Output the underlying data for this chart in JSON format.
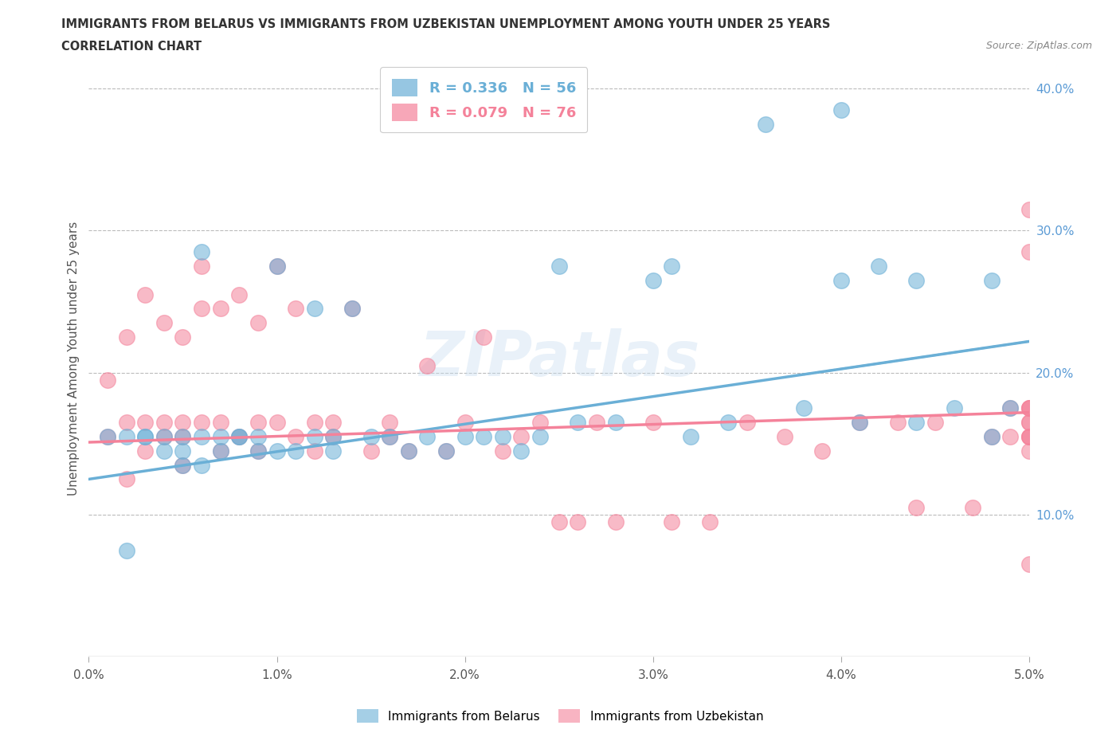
{
  "title_line1": "IMMIGRANTS FROM BELARUS VS IMMIGRANTS FROM UZBEKISTAN UNEMPLOYMENT AMONG YOUTH UNDER 25 YEARS",
  "title_line2": "CORRELATION CHART",
  "source_text": "Source: ZipAtlas.com",
  "ylabel": "Unemployment Among Youth under 25 years",
  "xlim": [
    0.0,
    0.05
  ],
  "ylim": [
    0.0,
    0.42
  ],
  "xticks": [
    0.0,
    0.01,
    0.02,
    0.03,
    0.04,
    0.05
  ],
  "xticklabels": [
    "0.0%",
    "1.0%",
    "2.0%",
    "3.0%",
    "4.0%",
    "5.0%"
  ],
  "yticks_right": [
    0.1,
    0.2,
    0.3,
    0.4
  ],
  "yticklabels_right": [
    "10.0%",
    "20.0%",
    "30.0%",
    "40.0%"
  ],
  "belarus_color": "#6aafd6",
  "uzbekistan_color": "#f4829a",
  "belarus_R": 0.336,
  "belarus_N": 56,
  "uzbekistan_R": 0.079,
  "uzbekistan_N": 76,
  "legend_label_belarus": "Immigrants from Belarus",
  "legend_label_uzbekistan": "Immigrants from Uzbekistan",
  "watermark": "ZIPatlas",
  "background_color": "#ffffff",
  "grid_color": "#bbbbbb",
  "belarus_trend": [
    0.125,
    0.222
  ],
  "uzbekistan_trend": [
    0.151,
    0.172
  ],
  "belarus_scatter_x": [
    0.001,
    0.002,
    0.002,
    0.003,
    0.003,
    0.004,
    0.004,
    0.005,
    0.005,
    0.005,
    0.006,
    0.006,
    0.006,
    0.007,
    0.007,
    0.008,
    0.008,
    0.009,
    0.009,
    0.01,
    0.01,
    0.011,
    0.012,
    0.012,
    0.013,
    0.013,
    0.014,
    0.015,
    0.016,
    0.017,
    0.018,
    0.019,
    0.02,
    0.021,
    0.022,
    0.023,
    0.024,
    0.025,
    0.026,
    0.028,
    0.03,
    0.031,
    0.032,
    0.034,
    0.036,
    0.038,
    0.04,
    0.04,
    0.041,
    0.042,
    0.044,
    0.044,
    0.046,
    0.048,
    0.048,
    0.049
  ],
  "belarus_scatter_y": [
    0.155,
    0.155,
    0.075,
    0.155,
    0.155,
    0.155,
    0.145,
    0.145,
    0.135,
    0.155,
    0.285,
    0.155,
    0.135,
    0.155,
    0.145,
    0.155,
    0.155,
    0.145,
    0.155,
    0.275,
    0.145,
    0.145,
    0.155,
    0.245,
    0.145,
    0.155,
    0.245,
    0.155,
    0.155,
    0.145,
    0.155,
    0.145,
    0.155,
    0.155,
    0.155,
    0.145,
    0.155,
    0.275,
    0.165,
    0.165,
    0.265,
    0.275,
    0.155,
    0.165,
    0.375,
    0.175,
    0.385,
    0.265,
    0.165,
    0.275,
    0.165,
    0.265,
    0.175,
    0.155,
    0.265,
    0.175
  ],
  "uzbekistan_scatter_x": [
    0.001,
    0.001,
    0.002,
    0.002,
    0.002,
    0.003,
    0.003,
    0.003,
    0.004,
    0.004,
    0.004,
    0.005,
    0.005,
    0.005,
    0.005,
    0.006,
    0.006,
    0.006,
    0.007,
    0.007,
    0.007,
    0.008,
    0.008,
    0.009,
    0.009,
    0.009,
    0.01,
    0.01,
    0.011,
    0.011,
    0.012,
    0.012,
    0.013,
    0.013,
    0.014,
    0.015,
    0.016,
    0.016,
    0.017,
    0.018,
    0.019,
    0.02,
    0.021,
    0.022,
    0.023,
    0.024,
    0.025,
    0.026,
    0.027,
    0.028,
    0.03,
    0.031,
    0.033,
    0.035,
    0.037,
    0.039,
    0.041,
    0.043,
    0.044,
    0.045,
    0.047,
    0.048,
    0.049,
    0.049,
    0.05,
    0.05,
    0.05,
    0.05,
    0.05,
    0.05,
    0.05,
    0.05,
    0.05,
    0.05,
    0.05,
    0.05
  ],
  "uzbekistan_scatter_y": [
    0.195,
    0.155,
    0.225,
    0.165,
    0.125,
    0.145,
    0.165,
    0.255,
    0.165,
    0.155,
    0.235,
    0.165,
    0.225,
    0.155,
    0.135,
    0.275,
    0.245,
    0.165,
    0.245,
    0.165,
    0.145,
    0.255,
    0.155,
    0.235,
    0.165,
    0.145,
    0.275,
    0.165,
    0.245,
    0.155,
    0.145,
    0.165,
    0.155,
    0.165,
    0.245,
    0.145,
    0.155,
    0.165,
    0.145,
    0.205,
    0.145,
    0.165,
    0.225,
    0.145,
    0.155,
    0.165,
    0.095,
    0.095,
    0.165,
    0.095,
    0.165,
    0.095,
    0.095,
    0.165,
    0.155,
    0.145,
    0.165,
    0.165,
    0.105,
    0.165,
    0.105,
    0.155,
    0.175,
    0.155,
    0.315,
    0.285,
    0.175,
    0.165,
    0.065,
    0.155,
    0.175,
    0.165,
    0.155,
    0.145,
    0.175,
    0.155
  ]
}
